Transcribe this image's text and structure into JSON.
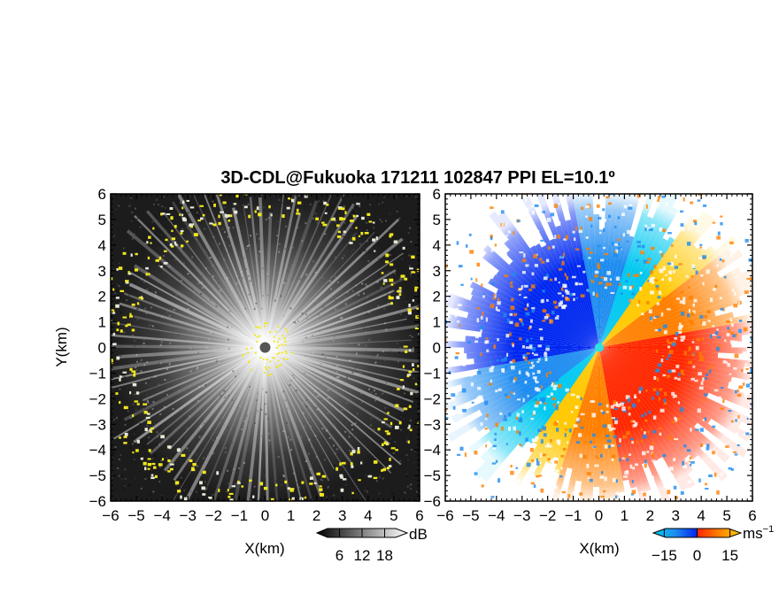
{
  "title": "3D-CDL@Fukuoka 171211 102847 PPI EL=10.1º",
  "chart_data": [
    {
      "type": "heatmap",
      "panel": "left",
      "quantity": "SNR",
      "xlabel": "X(km)",
      "ylabel": "Y(km)",
      "xlim": [
        -6,
        6
      ],
      "ylim": [
        -6,
        6
      ],
      "xticks": [
        "−6",
        "−5",
        "−4",
        "−3",
        "−2",
        "−1",
        "0",
        "1",
        "2",
        "3",
        "4",
        "5",
        "6"
      ],
      "yticks": [
        "−6",
        "−5",
        "−4",
        "−3",
        "−2",
        "−1",
        "0",
        "1",
        "2",
        "3",
        "4",
        "5",
        "6"
      ],
      "colorbar": {
        "unit": "dB",
        "ticks": [
          "6",
          "12",
          "18"
        ],
        "tick_values": [
          6,
          12,
          18
        ],
        "range": [
          0,
          24
        ]
      },
      "highlight_color": "#f2e81c",
      "center_marker_color": "#555555"
    },
    {
      "type": "heatmap",
      "panel": "right",
      "quantity": "radial velocity",
      "xlabel": "X(km)",
      "xlim": [
        -6,
        6
      ],
      "ylim": [
        -6,
        6
      ],
      "xticks": [
        "−6",
        "−5",
        "−4",
        "−3",
        "−2",
        "−1",
        "0",
        "1",
        "2",
        "3",
        "4",
        "5",
        "6"
      ],
      "yticks": [
        "−6",
        "−5",
        "−4",
        "−3",
        "−2",
        "−1",
        "0",
        "1",
        "2",
        "3",
        "4",
        "5",
        "6"
      ],
      "colorbar": {
        "unit": "ms",
        "unit_exponent": "−1",
        "ticks": [
          "−15",
          "0",
          "15"
        ],
        "tick_values": [
          -15,
          0,
          15
        ],
        "range": [
          -20,
          20
        ]
      },
      "colormap": [
        "#00c8f0",
        "#1e8cf0",
        "#0028f0",
        "#ff2800",
        "#ff8000",
        "#ffc800"
      ],
      "center_marker_color": "#30e0e0"
    }
  ]
}
